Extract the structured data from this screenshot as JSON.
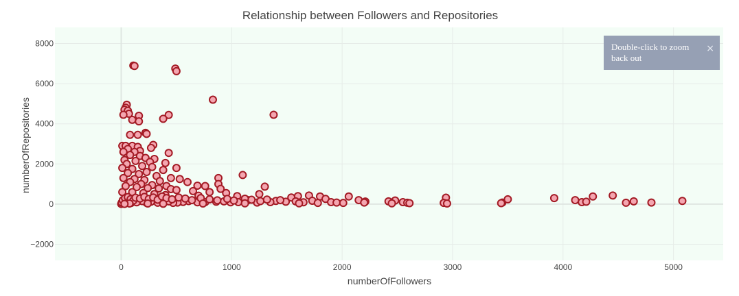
{
  "chart_data": {
    "type": "scatter",
    "title": "Relationship between Followers and Repositories",
    "xlabel": "numberOfFollowers",
    "ylabel": "numberOfRepositories",
    "xlim": [
      -600,
      5450
    ],
    "ylim": [
      -2800,
      8800
    ],
    "xticks": [
      0,
      1000,
      2000,
      3000,
      4000,
      5000
    ],
    "yticks": [
      -2000,
      0,
      2000,
      4000,
      6000,
      8000
    ],
    "grid": true,
    "plot_bgcolor": "#f3fdf6",
    "marker_fill": "#f4a6b0",
    "marker_line": "#a31a24",
    "points": [
      [
        110,
        6900
      ],
      [
        120,
        6880
      ],
      [
        490,
        6750
      ],
      [
        500,
        6620
      ],
      [
        830,
        5200
      ],
      [
        1380,
        4450
      ],
      [
        50,
        4950
      ],
      [
        40,
        4800
      ],
      [
        30,
        4700
      ],
      [
        60,
        4650
      ],
      [
        70,
        4500
      ],
      [
        20,
        4450
      ],
      [
        160,
        4400
      ],
      [
        430,
        4440
      ],
      [
        380,
        4250
      ],
      [
        100,
        4200
      ],
      [
        160,
        4120
      ],
      [
        220,
        3550
      ],
      [
        230,
        3500
      ],
      [
        80,
        3450
      ],
      [
        150,
        3450
      ],
      [
        290,
        2950
      ],
      [
        270,
        2800
      ],
      [
        10,
        2900
      ],
      [
        40,
        2900
      ],
      [
        100,
        2900
      ],
      [
        150,
        2850
      ],
      [
        60,
        2750
      ],
      [
        170,
        2650
      ],
      [
        20,
        2600
      ],
      [
        120,
        2600
      ],
      [
        430,
        2550
      ],
      [
        80,
        2450
      ],
      [
        170,
        2400
      ],
      [
        220,
        2300
      ],
      [
        300,
        2250
      ],
      [
        30,
        2200
      ],
      [
        130,
        2150
      ],
      [
        260,
        2100
      ],
      [
        400,
        2050
      ],
      [
        50,
        2000
      ],
      [
        190,
        1900
      ],
      [
        280,
        1850
      ],
      [
        500,
        1800
      ],
      [
        10,
        1800
      ],
      [
        100,
        1750
      ],
      [
        380,
        1700
      ],
      [
        230,
        1600
      ],
      [
        60,
        1550
      ],
      [
        160,
        1500
      ],
      [
        320,
        1400
      ],
      [
        450,
        1300
      ],
      [
        530,
        1250
      ],
      [
        20,
        1300
      ],
      [
        120,
        1250
      ],
      [
        880,
        1300
      ],
      [
        1100,
        1450
      ],
      [
        210,
        1200
      ],
      [
        350,
        1150
      ],
      [
        600,
        1100
      ],
      [
        80,
        1100
      ],
      [
        180,
        1000
      ],
      [
        280,
        950
      ],
      [
        410,
        900
      ],
      [
        690,
        920
      ],
      [
        760,
        900
      ],
      [
        880,
        1000
      ],
      [
        1300,
        870
      ],
      [
        40,
        900
      ],
      [
        140,
        850
      ],
      [
        240,
        800
      ],
      [
        340,
        780
      ],
      [
        450,
        750
      ],
      [
        900,
        760
      ],
      [
        500,
        700
      ],
      [
        650,
        650
      ],
      [
        800,
        600
      ],
      [
        950,
        550
      ],
      [
        1250,
        500
      ],
      [
        10,
        600
      ],
      [
        100,
        600
      ],
      [
        200,
        550
      ],
      [
        300,
        500
      ],
      [
        400,
        450
      ],
      [
        700,
        420
      ],
      [
        1050,
        400
      ],
      [
        1600,
        400
      ],
      [
        1700,
        430
      ],
      [
        1800,
        380
      ],
      [
        1850,
        260
      ],
      [
        2060,
        380
      ],
      [
        2150,
        200
      ],
      [
        2210,
        130
      ],
      [
        2420,
        140
      ],
      [
        2480,
        180
      ],
      [
        2550,
        100
      ],
      [
        2590,
        70
      ],
      [
        2610,
        50
      ],
      [
        2940,
        320
      ],
      [
        2920,
        60
      ],
      [
        3450,
        80
      ],
      [
        3500,
        240
      ],
      [
        3920,
        300
      ],
      [
        4110,
        200
      ],
      [
        4170,
        100
      ],
      [
        4210,
        120
      ],
      [
        4270,
        380
      ],
      [
        4450,
        430
      ],
      [
        4570,
        70
      ],
      [
        4640,
        140
      ],
      [
        4800,
        80
      ],
      [
        5080,
        160
      ],
      [
        1540,
        330
      ],
      [
        1490,
        120
      ],
      [
        1400,
        160
      ],
      [
        1350,
        100
      ],
      [
        1230,
        80
      ],
      [
        1150,
        200
      ],
      [
        1060,
        100
      ],
      [
        990,
        90
      ],
      [
        930,
        140
      ],
      [
        860,
        120
      ],
      [
        760,
        100
      ],
      [
        690,
        90
      ],
      [
        610,
        150
      ],
      [
        560,
        110
      ],
      [
        510,
        80
      ],
      [
        470,
        60
      ],
      [
        430,
        140
      ],
      [
        370,
        100
      ],
      [
        330,
        70
      ],
      [
        270,
        120
      ],
      [
        230,
        60
      ],
      [
        190,
        150
      ],
      [
        140,
        90
      ],
      [
        90,
        60
      ],
      [
        50,
        120
      ],
      [
        20,
        40
      ],
      [
        0,
        10
      ],
      [
        5,
        80
      ],
      [
        15,
        200
      ],
      [
        35,
        300
      ],
      [
        60,
        350
      ],
      [
        85,
        250
      ],
      [
        110,
        180
      ],
      [
        130,
        320
      ],
      [
        170,
        280
      ],
      [
        210,
        360
      ],
      [
        250,
        260
      ],
      [
        290,
        330
      ],
      [
        330,
        220
      ],
      [
        370,
        380
      ],
      [
        410,
        300
      ],
      [
        460,
        240
      ],
      [
        520,
        330
      ],
      [
        580,
        280
      ],
      [
        640,
        200
      ],
      [
        720,
        300
      ],
      [
        800,
        240
      ],
      [
        870,
        190
      ],
      [
        960,
        260
      ],
      [
        1020,
        180
      ],
      [
        1120,
        270
      ],
      [
        1180,
        220
      ],
      [
        1260,
        150
      ],
      [
        1320,
        230
      ],
      [
        1440,
        200
      ],
      [
        1580,
        140
      ],
      [
        1650,
        90
      ],
      [
        1730,
        170
      ],
      [
        1780,
        60
      ],
      [
        1900,
        100
      ],
      [
        1950,
        80
      ],
      [
        2010,
        60
      ],
      [
        2200,
        80
      ],
      [
        2450,
        40
      ],
      [
        3440,
        50
      ],
      [
        2950,
        30
      ],
      [
        1610,
        40
      ],
      [
        1120,
        40
      ],
      [
        740,
        30
      ],
      [
        380,
        20
      ],
      [
        240,
        30
      ],
      [
        75,
        30
      ],
      [
        30,
        10
      ]
    ]
  },
  "tooltip": {
    "text": "Double-click to zoom back out",
    "close_glyph": "×"
  }
}
